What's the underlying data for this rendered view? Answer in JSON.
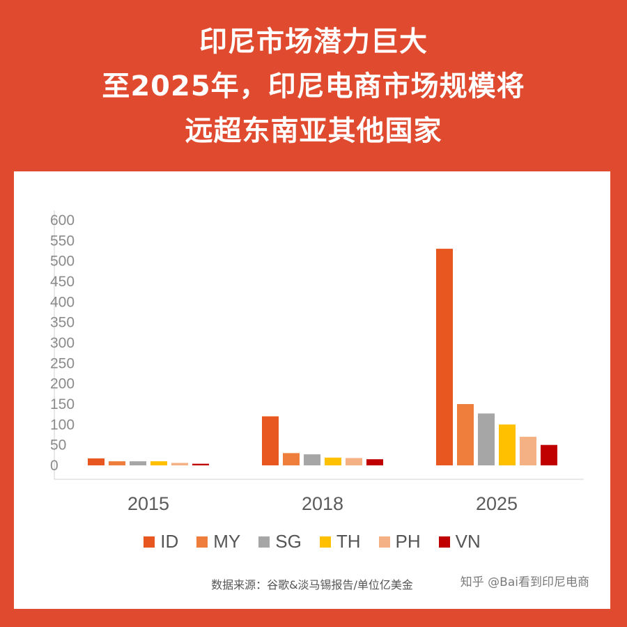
{
  "header": {
    "title_lines": [
      "印尼市场潜力巨大",
      "至2025年，印尼电商市场规模将",
      "远超东南亚其他国家"
    ]
  },
  "chart_data": {
    "type": "bar",
    "categories": [
      "2015",
      "2018",
      "2025"
    ],
    "series": [
      {
        "name": "ID",
        "color": "#e8571f",
        "values": [
          17,
          120,
          530
        ]
      },
      {
        "name": "MY",
        "color": "#ef7d3b",
        "values": [
          10,
          30,
          150
        ]
      },
      {
        "name": "SG",
        "color": "#a6a6a6",
        "values": [
          10,
          27,
          127
        ]
      },
      {
        "name": "TH",
        "color": "#ffc000",
        "values": [
          10,
          19,
          100
        ]
      },
      {
        "name": "PH",
        "color": "#f4b183",
        "values": [
          6,
          18,
          70
        ]
      },
      {
        "name": "VN",
        "color": "#c00000",
        "values": [
          4,
          15,
          50
        ]
      }
    ],
    "yticks": [
      0,
      50,
      100,
      150,
      200,
      250,
      300,
      350,
      400,
      450,
      500,
      550,
      600
    ],
    "ylim": [
      0,
      600
    ],
    "grid": false,
    "legend_position": "bottom",
    "xlabel": "",
    "ylabel": ""
  },
  "footer": {
    "source": "数据来源：谷歌&淡马锡报告/单位亿美金",
    "watermark": "知乎 @Bai看到印尼电商"
  }
}
